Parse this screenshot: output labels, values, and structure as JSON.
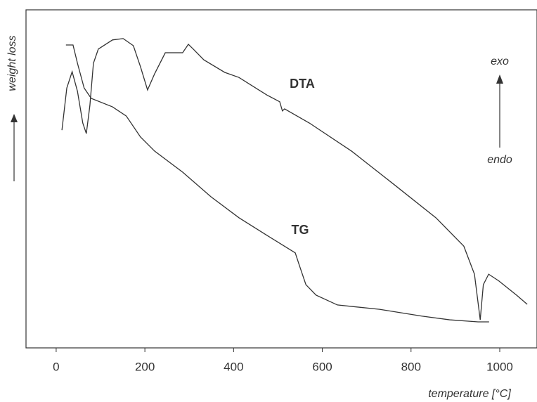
{
  "chart_data": {
    "type": "line",
    "x_label": "temperature [°C]",
    "y_label": "weight loss",
    "annotations": [
      "DTA",
      "TG",
      "exo",
      "endo"
    ],
    "xlim": [
      -68,
      1084
    ],
    "xticks": [
      0,
      200,
      400,
      600,
      800,
      1000
    ],
    "ylim": [
      0,
      100
    ],
    "series": [
      {
        "name": "TG",
        "color": "#333333",
        "x": [
          22,
          38,
          48,
          63,
          79,
          127,
          158,
          190,
          222,
          285,
          349,
          412,
          475,
          539,
          547,
          563,
          586,
          634,
          729,
          824,
          887,
          951,
          976
        ],
        "values": [
          89.6,
          89.6,
          84.2,
          76.9,
          73.8,
          71.3,
          68.6,
          62.4,
          58.2,
          52.0,
          44.7,
          38.5,
          33.3,
          28.1,
          24.9,
          18.7,
          15.6,
          12.7,
          11.4,
          9.4,
          8.3,
          7.7,
          7.7
        ]
      },
      {
        "name": "DTA",
        "color": "#333333",
        "x": [
          13,
          24,
          36,
          48,
          60,
          68,
          76,
          84,
          95,
          127,
          151,
          174,
          190,
          206,
          222,
          246,
          285,
          298,
          309,
          333,
          380,
          412,
          475,
          504,
          510,
          515,
          571,
          666,
          761,
          856,
          919,
          943,
          956,
          963,
          975,
          998,
          1038,
          1062
        ],
        "values": [
          64.4,
          76.9,
          81.7,
          75.9,
          66.5,
          63.4,
          71.7,
          84.2,
          88.4,
          91.1,
          91.5,
          89.4,
          83.2,
          76.3,
          81.1,
          87.3,
          87.3,
          89.8,
          88.4,
          85.2,
          81.5,
          80.0,
          74.8,
          72.8,
          70.1,
          70.7,
          66.5,
          58.2,
          48.4,
          38.5,
          30.1,
          21.8,
          8.3,
          18.7,
          21.8,
          19.8,
          15.6,
          12.9
        ]
      }
    ]
  }
}
